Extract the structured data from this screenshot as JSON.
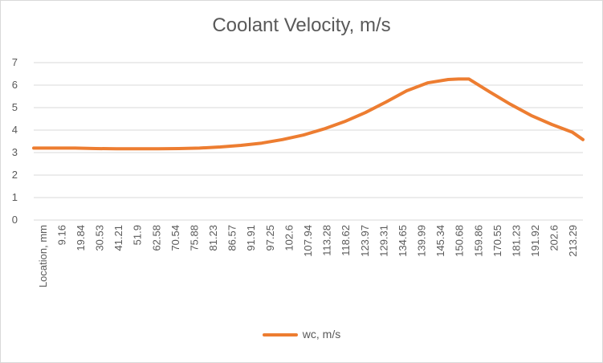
{
  "chart_data": {
    "type": "line",
    "title": "Coolant Velocity, m/s",
    "xlabel": "",
    "ylabel": "",
    "ylim": [
      0,
      7
    ],
    "y_ticks": [
      "0",
      "1",
      "2",
      "3",
      "4",
      "5",
      "6",
      "7"
    ],
    "grid": true,
    "legend": "bottom",
    "categories": [
      "Location, mm",
      "9.16",
      "19.84",
      "30.53",
      "41.21",
      "51.9",
      "62.58",
      "70.54",
      "75.88",
      "81.23",
      "86.57",
      "91.91",
      "97.25",
      "102.6",
      "107.94",
      "113.28",
      "118.62",
      "123.97",
      "129.31",
      "134.65",
      "139.99",
      "145.34",
      "150.68",
      "159.86",
      "170.55",
      "181.23",
      "191.92",
      "202.6",
      "213.29"
    ],
    "series": [
      {
        "name": "wc, m/s",
        "color": "#ED7D31",
        "x_frac": [
          0,
          0.0377,
          0.0755,
          0.1132,
          0.1509,
          0.1887,
          0.2264,
          0.2642,
          0.3019,
          0.3396,
          0.3774,
          0.4151,
          0.4528,
          0.4906,
          0.5283,
          0.566,
          0.6038,
          0.6415,
          0.6792,
          0.717,
          0.7547,
          0.7735,
          0.7925,
          0.8302,
          0.8679,
          0.9057,
          0.9434,
          0.9811,
          1
        ],
        "values": [
          3.2,
          3.2,
          3.2,
          3.18,
          3.17,
          3.17,
          3.17,
          3.18,
          3.2,
          3.25,
          3.32,
          3.42,
          3.58,
          3.78,
          4.05,
          4.38,
          4.78,
          5.25,
          5.75,
          6.1,
          6.25,
          6.27,
          6.27,
          5.7,
          5.15,
          4.65,
          4.25,
          3.9,
          3.58
        ]
      }
    ]
  }
}
